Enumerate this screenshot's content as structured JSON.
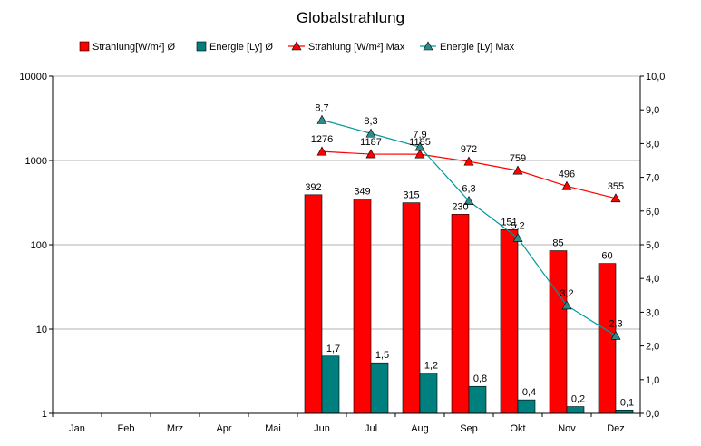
{
  "chart_data": {
    "type": "bar",
    "title": "Globalstrahlung",
    "categories": [
      "Jan",
      "Feb",
      "Mrz",
      "Apr",
      "Mai",
      "Jun",
      "Jul",
      "Aug",
      "Sep",
      "Okt",
      "Nov",
      "Dez"
    ],
    "series": [
      {
        "name": "Strahlung[W/m²] Ø",
        "type": "bar",
        "axis": "left",
        "color": "#ff0000",
        "values": [
          null,
          null,
          null,
          null,
          null,
          392,
          349,
          315,
          230,
          151,
          85,
          60
        ],
        "labels": [
          "",
          "",
          "",
          "",
          "",
          "392",
          "349",
          "315",
          "230",
          "151",
          "85",
          "60"
        ]
      },
      {
        "name": "Energie [Ly] Ø",
        "type": "bar",
        "axis": "right",
        "color": "#007f7f",
        "values": [
          null,
          null,
          null,
          null,
          null,
          1.7,
          1.5,
          1.2,
          0.8,
          0.4,
          0.2,
          0.1
        ],
        "labels": [
          "",
          "",
          "",
          "",
          "",
          "1,7",
          "1,5",
          "1,2",
          "0,8",
          "0,4",
          "0,2",
          "0,1"
        ]
      },
      {
        "name": "Strahlung [W/m²] Max",
        "type": "line",
        "axis": "left",
        "color": "#ff0000",
        "values": [
          null,
          null,
          null,
          null,
          null,
          1276,
          1187,
          1185,
          972,
          759,
          496,
          355
        ],
        "labels": [
          "",
          "",
          "",
          "",
          "",
          "1276",
          "1187",
          "1185",
          "972",
          "759",
          "496",
          "355"
        ]
      },
      {
        "name": "Energie [Ly] Max",
        "type": "line",
        "axis": "right",
        "color": "#009999",
        "values": [
          null,
          null,
          null,
          null,
          null,
          8.7,
          8.3,
          7.9,
          6.3,
          5.2,
          3.2,
          2.3
        ],
        "labels": [
          "",
          "",
          "",
          "",
          "",
          "8,7",
          "8,3",
          "7,9",
          "6,3",
          "5,2",
          "3,2",
          "2,3"
        ]
      }
    ],
    "y_left": {
      "scale": "log",
      "ylim": [
        1,
        10000
      ],
      "ticks": [
        "1",
        "10",
        "100",
        "1000",
        "10000"
      ]
    },
    "y_right": {
      "scale": "linear",
      "ylim": [
        0,
        10
      ],
      "ticks": [
        "0,0",
        "1,0",
        "2,0",
        "3,0",
        "4,0",
        "5,0",
        "6,0",
        "7,0",
        "8,0",
        "9,0",
        "10,0"
      ]
    },
    "grid": "horizontal",
    "legend_position": "top"
  },
  "colors": {
    "strahlung": "#ff0000",
    "energie_bar": "#007f7f",
    "energie_line": "#009999",
    "marker_fill": "#2e8b8b"
  }
}
